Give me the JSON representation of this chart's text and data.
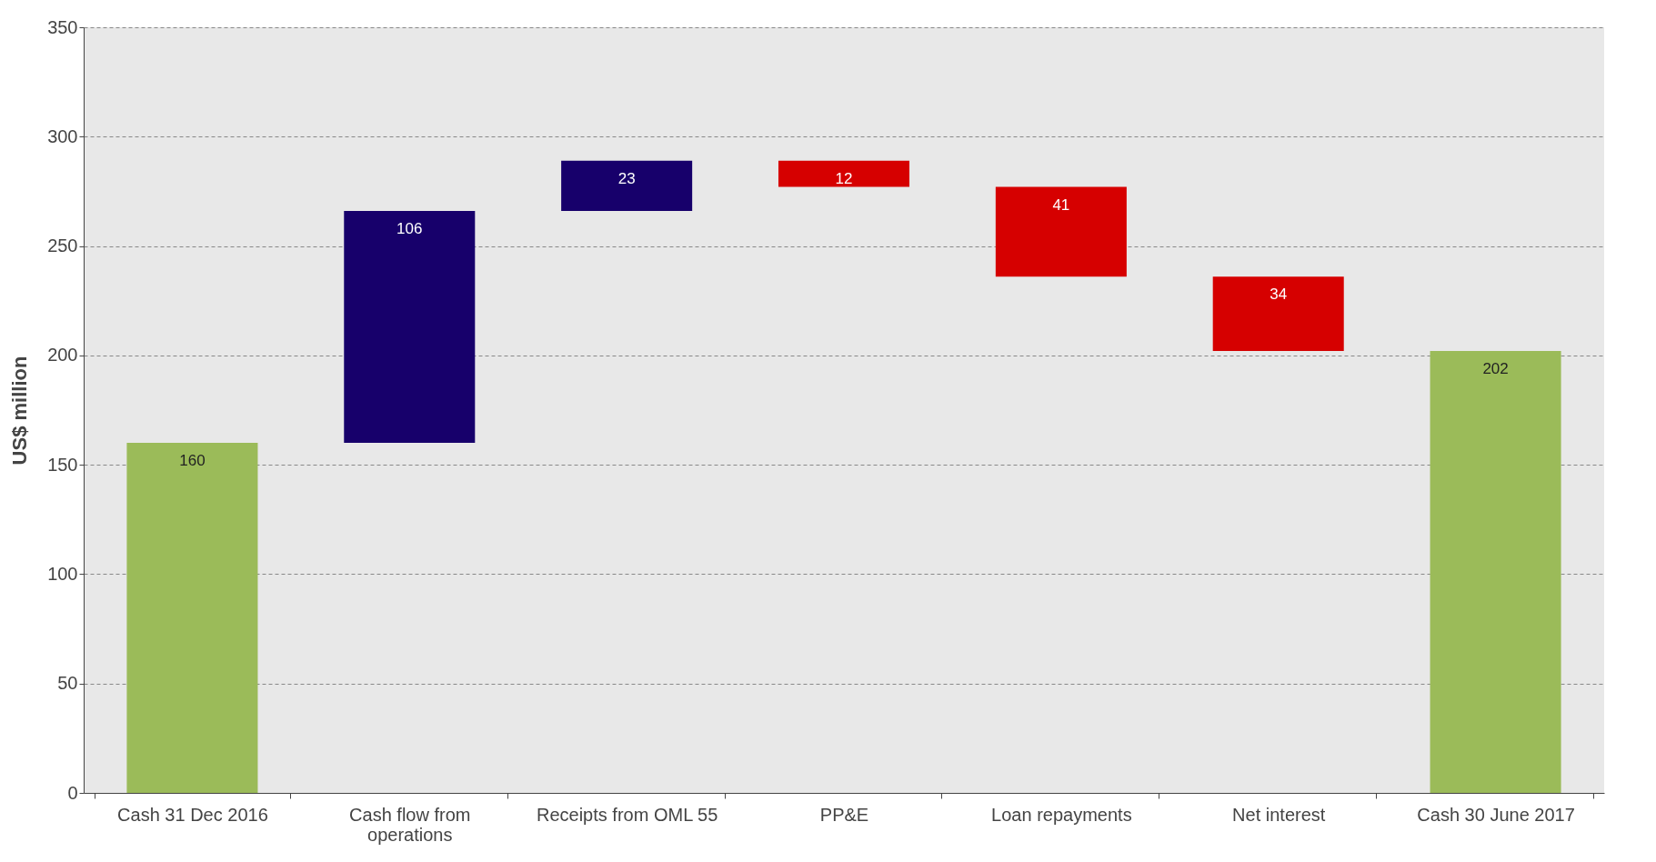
{
  "chart_data": {
    "type": "bar",
    "ylabel": "US$ million",
    "categories": [
      "Cash 31 Dec 2016",
      "Cash flow from operations",
      "Receipts from OML 55",
      "PP&E",
      "Loan repayments",
      "Net interest",
      "Cash 30 June 2017"
    ],
    "values": [
      160,
      106,
      23,
      -12,
      -41,
      -34,
      202
    ],
    "base": [
      0,
      160,
      266,
      289,
      277,
      236,
      0
    ],
    "colors": [
      "#9bbb59",
      "#17006b",
      "#17006b",
      "#d60000",
      "#d60000",
      "#d60000",
      "#9bbb59"
    ],
    "value_labels": [
      "160",
      "106",
      "23",
      "12",
      "41",
      "34",
      "202"
    ],
    "ylim": [
      0,
      350
    ],
    "yticks": [
      0,
      50,
      100,
      150,
      200,
      250,
      300,
      350
    ],
    "grid": "y"
  }
}
